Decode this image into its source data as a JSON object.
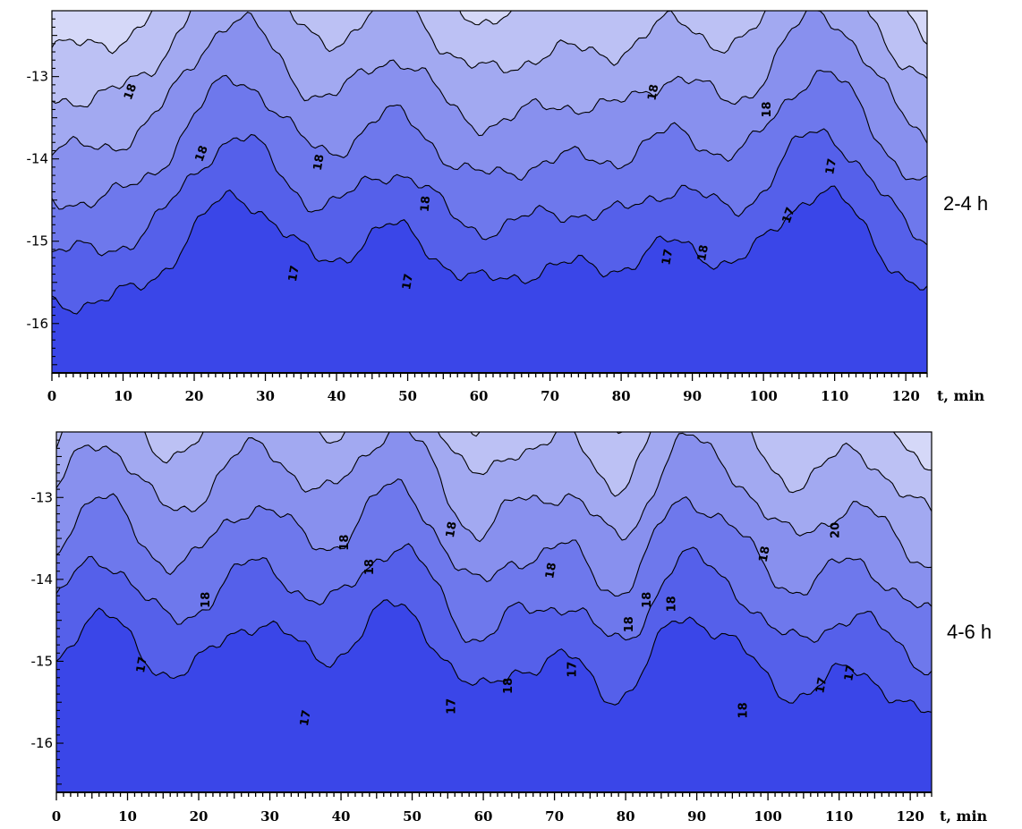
{
  "chart_data": [
    {
      "type": "heatmap",
      "panel_label": "2-4 h",
      "xlabel": "t, min",
      "ylabel": "",
      "xlim": [
        0,
        123
      ],
      "ylim": [
        -16.6,
        -12.2
      ],
      "x_ticks": [
        0,
        10,
        20,
        30,
        40,
        50,
        60,
        70,
        80,
        90,
        100,
        110,
        120
      ],
      "x_tick_labels": [
        "0",
        "10",
        "20",
        "30",
        "40",
        "50",
        "60",
        "70",
        "80",
        "90",
        "100",
        "110",
        "120"
      ],
      "y_ticks": [
        -13,
        -14,
        -15,
        -16
      ],
      "y_tick_labels": [
        "-13",
        "-14",
        "-15",
        "-16"
      ],
      "contour_labels": [
        {
          "text": "18",
          "x": 11.5,
          "y": -13.2,
          "angle": -70
        },
        {
          "text": "18",
          "x": 21.5,
          "y": -13.95,
          "angle": -70
        },
        {
          "text": "18",
          "x": 38,
          "y": -14.05,
          "angle": -80
        },
        {
          "text": "18",
          "x": 53,
          "y": -14.55,
          "angle": -85
        },
        {
          "text": "17",
          "x": 34.5,
          "y": -15.4,
          "angle": -80
        },
        {
          "text": "17",
          "x": 50.5,
          "y": -15.5,
          "angle": -80
        },
        {
          "text": "18",
          "x": 85,
          "y": -13.2,
          "angle": -80
        },
        {
          "text": "18",
          "x": 101,
          "y": -13.4,
          "angle": -90
        },
        {
          "text": "17",
          "x": 87,
          "y": -15.2,
          "angle": -80
        },
        {
          "text": "18",
          "x": 92,
          "y": -15.15,
          "angle": -80
        },
        {
          "text": "17",
          "x": 104,
          "y": -14.7,
          "angle": -70
        },
        {
          "text": "17",
          "x": 110,
          "y": -14.1,
          "angle": -80
        }
      ]
    },
    {
      "type": "heatmap",
      "panel_label": "4-6 h",
      "xlabel": "t, min",
      "ylabel": "",
      "xlim": [
        0,
        123
      ],
      "ylim": [
        -16.6,
        -12.2
      ],
      "x_ticks": [
        0,
        10,
        20,
        30,
        40,
        50,
        60,
        70,
        80,
        90,
        100,
        110,
        120
      ],
      "x_tick_labels": [
        "0",
        "10",
        "20",
        "30",
        "40",
        "50",
        "60",
        "70",
        "80",
        "90",
        "100",
        "110",
        "120"
      ],
      "y_ticks": [
        -13,
        -14,
        -15,
        -16
      ],
      "y_tick_labels": [
        "-13",
        "-14",
        "-15",
        "-16"
      ],
      "contour_labels": [
        {
          "text": "18",
          "x": 21.5,
          "y": -14.25,
          "angle": -90
        },
        {
          "text": "18",
          "x": 41,
          "y": -13.55,
          "angle": -90
        },
        {
          "text": "18",
          "x": 44.5,
          "y": -13.85,
          "angle": -90
        },
        {
          "text": "18",
          "x": 56,
          "y": -13.4,
          "angle": -80
        },
        {
          "text": "18",
          "x": 70,
          "y": -13.9,
          "angle": -80
        },
        {
          "text": "18",
          "x": 81,
          "y": -14.55,
          "angle": -90
        },
        {
          "text": "18",
          "x": 83.5,
          "y": -14.25,
          "angle": -90
        },
        {
          "text": "18",
          "x": 87,
          "y": -14.3,
          "angle": -90
        },
        {
          "text": "18",
          "x": 100,
          "y": -13.7,
          "angle": -80
        },
        {
          "text": "20",
          "x": 110,
          "y": -13.4,
          "angle": -90
        },
        {
          "text": "17",
          "x": 12.5,
          "y": -15.05,
          "angle": -80
        },
        {
          "text": "17",
          "x": 35.5,
          "y": -15.7,
          "angle": -80
        },
        {
          "text": "17",
          "x": 56,
          "y": -15.55,
          "angle": -90
        },
        {
          "text": "18",
          "x": 64,
          "y": -15.3,
          "angle": -90
        },
        {
          "text": "17",
          "x": 73,
          "y": -15.1,
          "angle": -90
        },
        {
          "text": "18",
          "x": 97,
          "y": -15.6,
          "angle": -90
        },
        {
          "text": "17",
          "x": 108,
          "y": -15.3,
          "angle": -80
        },
        {
          "text": "17",
          "x": 112,
          "y": -15.15,
          "angle": -80
        }
      ]
    }
  ],
  "colors": {
    "level_0": "#3a46e8",
    "level_1": "#5560ea",
    "level_2": "#6e78ec",
    "level_3": "#8890ee",
    "level_4": "#a2a9f1",
    "level_5": "#bcc1f4",
    "level_6": "#d5d8f8",
    "line": "#000000"
  }
}
